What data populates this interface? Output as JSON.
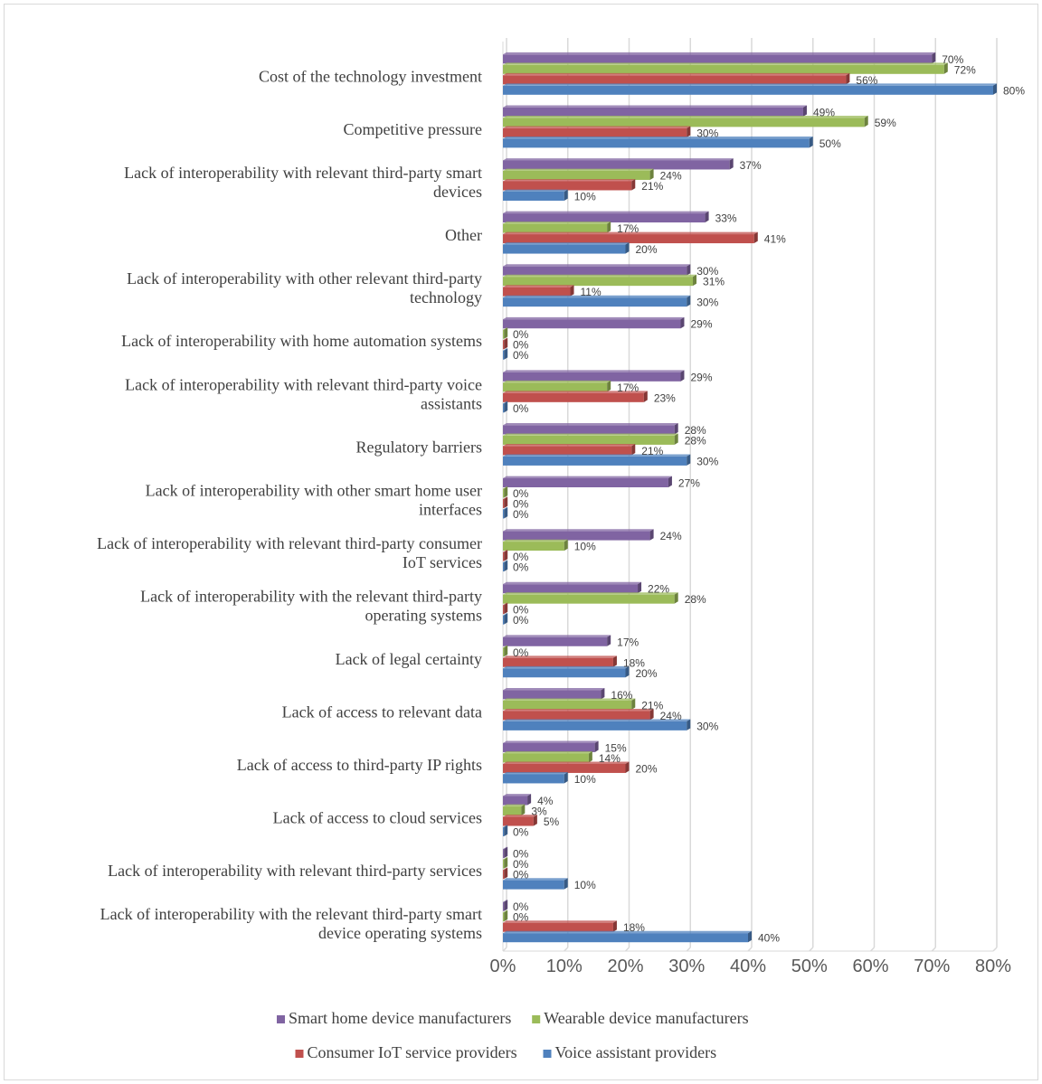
{
  "chart_data": {
    "type": "bar",
    "orientation": "horizontal",
    "categories": [
      "Cost of the technology investment",
      "Competitive pressure",
      "Lack of interoperability with relevant third-party smart devices",
      "Other",
      "Lack of interoperability with other relevant third-party technology",
      "Lack of interoperability with home automation systems",
      "Lack of interoperability with relevant third-party voice assistants",
      "Regulatory barriers",
      "Lack of interoperability with other smart home user interfaces",
      "Lack of interoperability with relevant third-party consumer IoT services",
      "Lack of interoperability with the relevant third-party operating systems",
      "Lack of legal certainty",
      "Lack of access to relevant data",
      "Lack of access to third-party IP rights",
      "Lack of access to cloud services",
      "Lack of interoperability with relevant third-party services",
      "Lack of interoperability with the relevant third-party smart device operating systems"
    ],
    "category_lines": [
      [
        "Cost of the technology investment"
      ],
      [
        "Competitive pressure"
      ],
      [
        "Lack of interoperability with relevant third-party smart",
        "devices"
      ],
      [
        "Other"
      ],
      [
        "Lack of interoperability with other relevant third-party",
        "technology"
      ],
      [
        "Lack of interoperability with home automation systems"
      ],
      [
        "Lack of interoperability with relevant third-party voice",
        "assistants"
      ],
      [
        "Regulatory barriers"
      ],
      [
        "Lack of interoperability with other smart home user",
        "interfaces"
      ],
      [
        "Lack of interoperability with relevant third-party consumer",
        "IoT services"
      ],
      [
        "Lack of interoperability with the relevant third-party",
        "operating systems"
      ],
      [
        "Lack of legal certainty"
      ],
      [
        "Lack of access to relevant data"
      ],
      [
        "Lack of access to third-party IP rights"
      ],
      [
        "Lack of access to cloud services"
      ],
      [
        "Lack of interoperability with relevant third-party services"
      ],
      [
        "Lack of interoperability with the relevant third-party smart",
        "device operating systems"
      ]
    ],
    "series": [
      {
        "name": "Smart home device manufacturers",
        "color": "#8064a2",
        "values": [
          70,
          49,
          37,
          33,
          30,
          29,
          29,
          28,
          27,
          24,
          22,
          17,
          16,
          15,
          4,
          0,
          0
        ]
      },
      {
        "name": "Wearable device manufacturers",
        "color": "#9bbb59",
        "values": [
          72,
          59,
          24,
          17,
          31,
          0,
          17,
          28,
          0,
          10,
          28,
          0,
          21,
          14,
          3,
          0,
          0
        ]
      },
      {
        "name": "Consumer IoT service providers",
        "color": "#c0504d",
        "values": [
          56,
          30,
          21,
          41,
          11,
          0,
          23,
          21,
          0,
          0,
          0,
          18,
          24,
          20,
          5,
          0,
          18
        ]
      },
      {
        "name": "Voice assistant providers",
        "color": "#4f81bd",
        "values": [
          80,
          50,
          10,
          20,
          30,
          0,
          0,
          30,
          0,
          0,
          0,
          20,
          30,
          10,
          0,
          10,
          40
        ]
      }
    ],
    "value_suffix": "%",
    "xlim": [
      0,
      80
    ],
    "xticks": [
      0,
      10,
      20,
      30,
      40,
      50,
      60,
      70,
      80
    ],
    "xtick_labels": [
      "0%",
      "10%",
      "20%",
      "30%",
      "40%",
      "50%",
      "60%",
      "70%",
      "80%"
    ],
    "grid": "vertical",
    "legend_position": "bottom",
    "legend_rows": [
      [
        "Smart home device manufacturers",
        "Wearable device manufacturers"
      ],
      [
        "Consumer IoT service providers",
        "Voice assistant providers"
      ]
    ]
  }
}
